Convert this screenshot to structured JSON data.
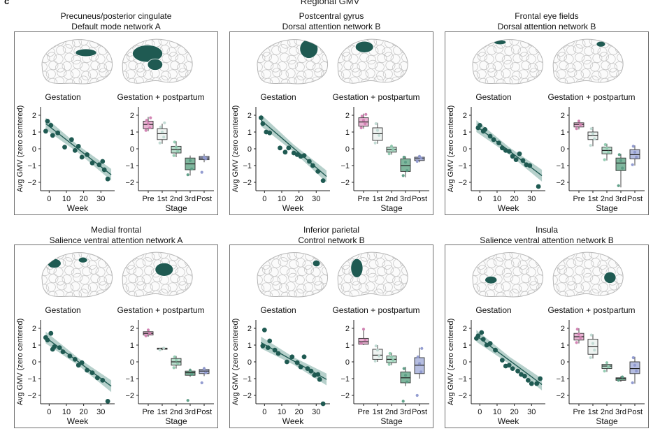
{
  "figure": {
    "letter": "c",
    "title": "Regional GMV",
    "plot_titles": {
      "left": "Gestation",
      "right": "Gestation + postpartum"
    },
    "axis_labels": {
      "y": "Avg GMV (zero centered)",
      "x_left": "Week",
      "x_right": "Stage"
    }
  },
  "colors": {
    "regression": "#1f5a52",
    "band": "#9dc0b9",
    "stage_fill": [
      "#e9b3d3",
      "#eef3f1",
      "#b7dccb",
      "#7fb69d",
      "#b5bde0"
    ],
    "stage_point": [
      "#d17fb1",
      "#bfd9d2",
      "#8fcaaf",
      "#5a9c84",
      "#8e98cf"
    ],
    "brain_fill": "#1f5a52",
    "brain_line": "#c8c8c8"
  },
  "panels": [
    {
      "title1": "Precuneus/posterior cingulate",
      "title2": "Default mode network A",
      "brain_icons": [
        "lateral-view-icon",
        "medial-view-icon"
      ]
    },
    {
      "title1": "Postcentral gyrus",
      "title2": "Dorsal attention network B",
      "brain_icons": [
        "lateral-view-icon",
        "medial-view-icon"
      ]
    },
    {
      "title1": "Frontal eye fields",
      "title2": "Dorsal attention network B",
      "brain_icons": [
        "lateral-view-icon",
        "medial-view-icon"
      ]
    },
    {
      "title1": "Medial frontal",
      "title2": "Salience ventral attention network A",
      "brain_icons": [
        "lateral-view-icon",
        "medial-view-icon"
      ]
    },
    {
      "title1": "Inferior parietal",
      "title2": "Control network B",
      "brain_icons": [
        "lateral-view-icon",
        "medial-view-icon"
      ]
    },
    {
      "title1": "Insula",
      "title2": "Salience ventral attention network B",
      "brain_icons": [
        "lateral-view-icon",
        "medial-view-icon"
      ]
    }
  ],
  "chart_data": [
    {
      "type": "scatter",
      "region": "Precuneus/posterior cingulate",
      "x": [
        -2,
        -1,
        1,
        2,
        5,
        9,
        13,
        15,
        17,
        19,
        22,
        25,
        29,
        31,
        32,
        34
      ],
      "y": [
        1.05,
        1.65,
        1.4,
        0.8,
        0.95,
        0.1,
        0.55,
        -0.1,
        0.15,
        -0.5,
        -0.35,
        -0.85,
        -0.95,
        -0.75,
        -1.25,
        -1.8
      ],
      "fit": [
        [
          -2,
          1.5
        ],
        [
          36,
          -1.55
        ]
      ],
      "xticks": [
        "0",
        "10",
        "20",
        "30"
      ],
      "xtick_values": [
        0,
        10,
        20,
        30
      ],
      "yticks": [
        "2",
        "1",
        "0",
        "−1",
        "−2"
      ],
      "ytick_values": [
        2,
        1,
        0,
        -1,
        -2
      ],
      "xlim": [
        -5,
        38
      ],
      "ylim": [
        -2.5,
        2.5
      ]
    },
    {
      "type": "box",
      "region": "Precuneus/posterior cingulate",
      "categories": [
        "Pre",
        "1st",
        "2nd",
        "3rd",
        "Post"
      ],
      "ylim": [
        -2.5,
        2.5
      ],
      "boxes": [
        {
          "min": 1.05,
          "q1": 1.2,
          "med": 1.45,
          "q3": 1.65,
          "max": 1.9,
          "points": [
            1.1,
            1.25,
            1.5,
            1.7,
            1.85
          ]
        },
        {
          "min": 0.3,
          "q1": 0.55,
          "med": 0.9,
          "q3": 1.2,
          "max": 1.5,
          "points": [
            0.35,
            0.7,
            1.0,
            1.3,
            1.55
          ]
        },
        {
          "min": -0.5,
          "q1": -0.25,
          "med": -0.05,
          "q3": 0.15,
          "max": 0.45,
          "points": [
            -0.4,
            -0.15,
            0.1,
            0.4
          ]
        },
        {
          "min": -1.6,
          "q1": -1.25,
          "med": -0.9,
          "q3": -0.55,
          "max": -0.4,
          "points": [
            -1.55,
            -1.2,
            -0.7
          ]
        },
        {
          "min": -0.8,
          "q1": -0.65,
          "med": -0.55,
          "q3": -0.45,
          "max": -0.3,
          "points": [
            -1.4,
            -0.6,
            -0.5
          ]
        }
      ]
    },
    {
      "type": "scatter",
      "region": "Postcentral gyrus",
      "x": [
        -2,
        -1,
        1,
        3,
        9,
        12,
        14,
        17,
        19,
        21,
        23,
        26,
        28,
        31,
        34
      ],
      "y": [
        1.85,
        1.5,
        1.0,
        0.95,
        0.05,
        -0.2,
        0.05,
        -0.25,
        -0.35,
        -0.45,
        -0.4,
        -0.75,
        -1.0,
        -1.35,
        -1.9
      ],
      "fit": [
        [
          -2,
          1.7
        ],
        [
          36,
          -1.65
        ]
      ],
      "xticks": [
        "0",
        "10",
        "20",
        "30"
      ],
      "xtick_values": [
        0,
        10,
        20,
        30
      ],
      "yticks": [
        "2",
        "1",
        "0",
        "−1",
        "−2"
      ],
      "ytick_values": [
        2,
        1,
        0,
        -1,
        -2
      ],
      "xlim": [
        -5,
        38
      ],
      "ylim": [
        -2.5,
        2.5
      ]
    },
    {
      "type": "box",
      "region": "Postcentral gyrus",
      "categories": [
        "Pre",
        "1st",
        "2nd",
        "3rd",
        "Post"
      ],
      "ylim": [
        -2.5,
        2.5
      ],
      "boxes": [
        {
          "min": 1.2,
          "q1": 1.35,
          "med": 1.6,
          "q3": 1.85,
          "max": 2.1,
          "points": [
            1.25,
            1.5,
            1.7,
            1.95,
            2.05
          ]
        },
        {
          "min": 0.3,
          "q1": 0.5,
          "med": 0.9,
          "q3": 1.25,
          "max": 1.55,
          "points": [
            0.35,
            0.8,
            1.1,
            1.5
          ]
        },
        {
          "min": -0.35,
          "q1": -0.2,
          "med": -0.05,
          "q3": 0.1,
          "max": 0.25,
          "points": [
            -0.3,
            -0.05,
            0.15
          ]
        },
        {
          "min": -1.7,
          "q1": -1.35,
          "med": -1.0,
          "q3": -0.6,
          "max": -0.45,
          "points": [
            -1.6,
            -1.3,
            -0.8,
            -0.5
          ]
        },
        {
          "min": -0.8,
          "q1": -0.7,
          "med": -0.6,
          "q3": -0.5,
          "max": -0.4,
          "points": [
            -0.75,
            -0.55,
            -0.45
          ]
        }
      ]
    },
    {
      "type": "scatter",
      "region": "Frontal eye fields",
      "x": [
        -1,
        0,
        2,
        3,
        6,
        8,
        11,
        13,
        15,
        17,
        19,
        21,
        23,
        25,
        27,
        29,
        34
      ],
      "y": [
        1.25,
        1.4,
        1.05,
        1.15,
        0.75,
        0.55,
        0.35,
        0.05,
        -0.1,
        -0.15,
        -0.45,
        -0.65,
        -0.3,
        -0.7,
        -0.95,
        -1.0,
        -2.25
      ],
      "fit": [
        [
          -2,
          1.35
        ],
        [
          36,
          -1.6
        ]
      ],
      "xticks": [
        "0",
        "10",
        "20",
        "30"
      ],
      "xtick_values": [
        0,
        10,
        20,
        30
      ],
      "yticks": [
        "2",
        "1",
        "0",
        "−1",
        "−2"
      ],
      "ytick_values": [
        2,
        1,
        0,
        -1,
        -2
      ],
      "xlim": [
        -5,
        38
      ],
      "ylim": [
        -2.5,
        2.5
      ]
    },
    {
      "type": "box",
      "region": "Frontal eye fields",
      "categories": [
        "Pre",
        "1st",
        "2nd",
        "3rd",
        "Post"
      ],
      "ylim": [
        -2.5,
        2.5
      ],
      "boxes": [
        {
          "min": 1.15,
          "q1": 1.3,
          "med": 1.45,
          "q3": 1.55,
          "max": 1.7,
          "points": [
            1.2,
            1.45,
            1.65
          ]
        },
        {
          "min": 0.15,
          "q1": 0.55,
          "med": 0.8,
          "q3": 1.0,
          "max": 1.3,
          "points": [
            0.2,
            0.6,
            0.9,
            1.2
          ]
        },
        {
          "min": -0.7,
          "q1": -0.3,
          "med": -0.1,
          "q3": 0.1,
          "max": 0.3,
          "points": [
            -0.65,
            -0.2,
            0.05,
            0.25
          ]
        },
        {
          "min": -2.3,
          "q1": -1.3,
          "med": -0.85,
          "q3": -0.55,
          "max": -0.3,
          "points": [
            -2.2,
            -1.15,
            -0.7,
            -0.35
          ]
        },
        {
          "min": -1.0,
          "q1": -0.6,
          "med": -0.35,
          "q3": -0.05,
          "max": 0.2,
          "points": [
            -0.95,
            -0.5,
            -0.2,
            0.15
          ]
        }
      ]
    },
    {
      "type": "scatter",
      "region": "Medial frontal",
      "x": [
        -2,
        -1,
        1,
        2,
        3,
        6,
        8,
        12,
        15,
        17,
        19,
        22,
        25,
        28,
        31,
        34
      ],
      "y": [
        1.45,
        1.3,
        1.7,
        0.75,
        0.9,
        0.85,
        0.6,
        0.35,
        0.15,
        -0.2,
        -0.05,
        -0.5,
        -0.65,
        -0.95,
        -1.1,
        -2.35
      ],
      "fit": [
        [
          -2,
          1.45
        ],
        [
          36,
          -1.45
        ]
      ],
      "xticks": [
        "0",
        "10",
        "20",
        "30"
      ],
      "xtick_values": [
        0,
        10,
        20,
        30
      ],
      "yticks": [
        "2",
        "1",
        "0",
        "−1",
        "−2"
      ],
      "ytick_values": [
        2,
        1,
        0,
        -1,
        -2
      ],
      "xlim": [
        -5,
        38
      ],
      "ylim": [
        -2.5,
        2.5
      ]
    },
    {
      "type": "box",
      "region": "Medial frontal",
      "categories": [
        "Pre",
        "1st",
        "2nd",
        "3rd",
        "Post"
      ],
      "ylim": [
        -2.5,
        2.5
      ],
      "boxes": [
        {
          "min": 1.5,
          "q1": 1.6,
          "med": 1.7,
          "q3": 1.8,
          "max": 1.95,
          "points": [
            1.55,
            1.7,
            1.9
          ]
        },
        {
          "min": 0.7,
          "q1": 0.75,
          "med": 0.8,
          "q3": 0.82,
          "max": 0.85,
          "points": [
            0.72,
            0.82
          ]
        },
        {
          "min": -0.4,
          "q1": -0.2,
          "med": 0.0,
          "q3": 0.2,
          "max": 0.35,
          "points": [
            -0.35,
            -0.1,
            0.1,
            0.3
          ]
        },
        {
          "min": -0.9,
          "q1": -0.8,
          "med": -0.65,
          "q3": -0.55,
          "max": -0.4,
          "points": [
            -2.3,
            -0.75,
            -0.5
          ]
        },
        {
          "min": -0.85,
          "q1": -0.7,
          "med": -0.55,
          "q3": -0.45,
          "max": -0.3,
          "points": [
            -1.25,
            -0.65,
            -0.4
          ]
        }
      ]
    },
    {
      "type": "scatter",
      "region": "Inferior parietal",
      "x": [
        -1,
        0,
        2,
        3,
        6,
        8,
        13,
        16,
        19,
        21,
        23,
        25,
        27,
        29,
        31,
        32,
        34
      ],
      "y": [
        0.95,
        1.9,
        0.85,
        1.25,
        0.7,
        0.5,
        0.0,
        0.3,
        -0.05,
        -0.3,
        0.3,
        -0.4,
        -0.55,
        -0.8,
        -0.75,
        -1.05,
        -2.5
      ],
      "fit": [
        [
          -2,
          1.15
        ],
        [
          36,
          -1.05
        ]
      ],
      "xticks": [
        "0",
        "10",
        "20",
        "30"
      ],
      "xtick_values": [
        0,
        10,
        20,
        30
      ],
      "yticks": [
        "2",
        "1",
        "0",
        "−1",
        "−2"
      ],
      "ytick_values": [
        2,
        1,
        0,
        -1,
        -2
      ],
      "xlim": [
        -5,
        38
      ],
      "ylim": [
        -2.5,
        2.5
      ]
    },
    {
      "type": "box",
      "region": "Inferior parietal",
      "categories": [
        "Pre",
        "1st",
        "2nd",
        "3rd",
        "Post"
      ],
      "ylim": [
        -2.5,
        2.5
      ],
      "boxes": [
        {
          "min": 1.0,
          "q1": 1.05,
          "med": 1.2,
          "q3": 1.4,
          "max": 2.0,
          "points": [
            1.1,
            1.3,
            1.95
          ]
        },
        {
          "min": 0.0,
          "q1": 0.15,
          "med": 0.4,
          "q3": 0.75,
          "max": 1.0,
          "points": [
            0.05,
            0.35,
            0.7,
            0.95
          ]
        },
        {
          "min": -0.2,
          "q1": -0.05,
          "med": 0.15,
          "q3": 0.35,
          "max": 0.55,
          "points": [
            -0.15,
            0.1,
            0.3,
            0.5
          ]
        },
        {
          "min": -1.45,
          "q1": -1.25,
          "med": -0.95,
          "q3": -0.6,
          "max": -0.3,
          "points": [
            -2.35,
            -1.2,
            -0.8,
            -0.4
          ]
        },
        {
          "min": -1.0,
          "q1": -0.7,
          "med": -0.2,
          "q3": 0.25,
          "max": 0.85,
          "points": [
            -2.0,
            -0.6,
            -0.1,
            0.3,
            0.8
          ]
        }
      ]
    },
    {
      "type": "scatter",
      "region": "Insula",
      "x": [
        -2,
        -1,
        1,
        2,
        4,
        6,
        9,
        13,
        15,
        17,
        19,
        22,
        24,
        26,
        28,
        30,
        33,
        35
      ],
      "y": [
        1.4,
        1.55,
        1.75,
        1.35,
        1.0,
        1.1,
        0.7,
        0.1,
        -0.25,
        -0.2,
        -0.4,
        -0.55,
        -0.75,
        -0.85,
        -1.1,
        -1.3,
        -1.3,
        -1.0
      ],
      "fit": [
        [
          -2,
          1.55
        ],
        [
          36,
          -1.35
        ]
      ],
      "xticks": [
        "0",
        "10",
        "20",
        "30"
      ],
      "xtick_values": [
        0,
        10,
        20,
        30
      ],
      "yticks": [
        "2",
        "1",
        "0",
        "−1",
        "−2"
      ],
      "ytick_values": [
        2,
        1,
        0,
        -1,
        -2
      ],
      "xlim": [
        -5,
        38
      ],
      "ylim": [
        -2.5,
        2.5
      ]
    },
    {
      "type": "box",
      "region": "Insula",
      "categories": [
        "Pre",
        "1st",
        "2nd",
        "3rd",
        "Post"
      ],
      "ylim": [
        -2.5,
        2.5
      ],
      "boxes": [
        {
          "min": 1.1,
          "q1": 1.3,
          "med": 1.5,
          "q3": 1.7,
          "max": 2.0,
          "points": [
            1.15,
            1.45,
            1.65,
            1.95
          ]
        },
        {
          "min": 0.2,
          "q1": 0.45,
          "med": 0.9,
          "q3": 1.35,
          "max": 1.65,
          "points": [
            0.25,
            0.7,
            1.1,
            1.6
          ]
        },
        {
          "min": -0.6,
          "q1": -0.4,
          "med": -0.25,
          "q3": -0.15,
          "max": 0.0,
          "points": [
            -0.55,
            -0.3,
            -0.05
          ]
        },
        {
          "min": -1.2,
          "q1": -1.1,
          "med": -1.0,
          "q3": -0.95,
          "max": -0.85,
          "points": [
            -1.1,
            -0.9
          ]
        },
        {
          "min": -1.3,
          "q1": -0.7,
          "med": -0.4,
          "q3": 0.0,
          "max": 0.3,
          "points": [
            -1.25,
            -0.55,
            -0.2,
            0.25
          ]
        }
      ]
    }
  ]
}
